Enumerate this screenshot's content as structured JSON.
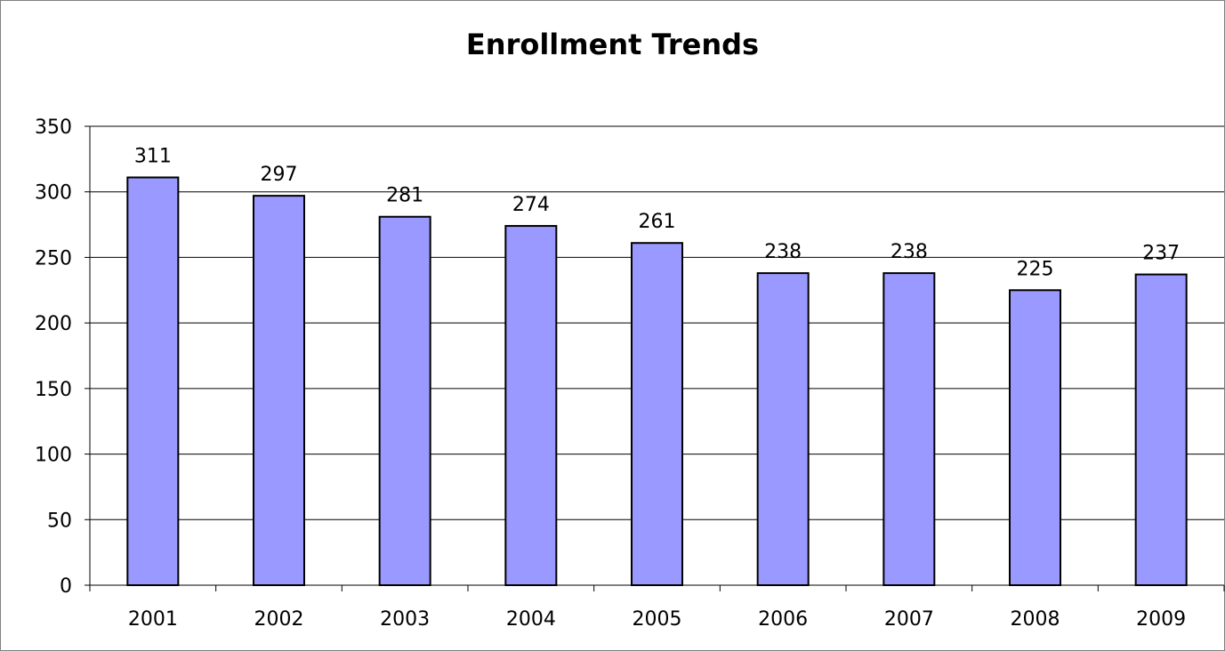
{
  "chart_data": {
    "type": "bar",
    "title": "Enrollment Trends",
    "categories": [
      "2001",
      "2002",
      "2003",
      "2004",
      "2005",
      "2006",
      "2007",
      "2008",
      "2009"
    ],
    "values": [
      311,
      297,
      281,
      274,
      261,
      238,
      238,
      225,
      237
    ],
    "data_labels": [
      "311",
      "297",
      "281",
      "274",
      "261",
      "238",
      "238",
      "225",
      "237"
    ],
    "y_ticks": [
      0,
      50,
      100,
      150,
      200,
      250,
      300,
      350
    ],
    "ylim": [
      0,
      350
    ],
    "grid": true,
    "legend": "none",
    "colors": {
      "bar_fill": "#9999ff",
      "bar_stroke": "#000000",
      "grid": "#000000",
      "text": "#000000"
    }
  }
}
